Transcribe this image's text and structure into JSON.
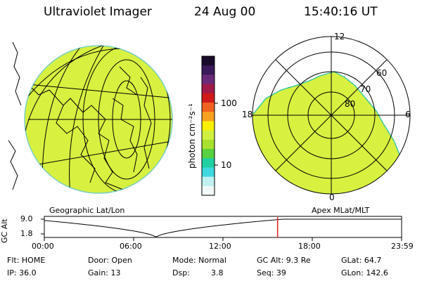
{
  "header": {
    "instrument": "Ultraviolet Imager",
    "date": "24 Aug 00",
    "time": "15:40:16 UT"
  },
  "colorbar": {
    "unit_label": "photon cm⁻²s⁻¹",
    "ticks": [
      "100",
      "10"
    ],
    "colors": [
      "#1a0a2a",
      "#3a1a5a",
      "#6a2a7a",
      "#a01a4a",
      "#d01a1a",
      "#f06020",
      "#f8a020",
      "#f8f000",
      "#d0f040",
      "#a8e030",
      "#58d040",
      "#20d0a0",
      "#40d8e0",
      "#c0f0f0",
      "#f0f8f8"
    ]
  },
  "left_panel": {
    "label": "Geographic Lat/Lon",
    "fill_color": "#d8f040"
  },
  "right_panel": {
    "label": "Apex MLat/MLT",
    "mlt_labels": [
      "12",
      "18",
      "6",
      "0"
    ],
    "mlat_labels": [
      "60",
      "70",
      "80"
    ],
    "fill_color": "#d8f040"
  },
  "altitude_plot": {
    "ylabel": "GC Alt",
    "y_ticks": [
      "9.0",
      "1.8"
    ],
    "x_ticks": [
      "00:00",
      "06:00",
      "12:00",
      "18:00",
      "23:59"
    ],
    "current_time_hours": 15.67,
    "marker_color": "#e02020"
  },
  "status": {
    "row1": {
      "flt": "Flt: HOME",
      "door": "Door: Open",
      "mode": "Mode: Normal",
      "gcalt": "GC Alt: 9.3 Re",
      "glat": "GLat:  64.7"
    },
    "row2": {
      "ip": "IP: 36.0",
      "gain": "Gain: 13",
      "dsp_label": "Dsp:",
      "dsp_value": "3.8",
      "seq": "Seq: 39",
      "glon": "GLon: 142.6"
    }
  }
}
